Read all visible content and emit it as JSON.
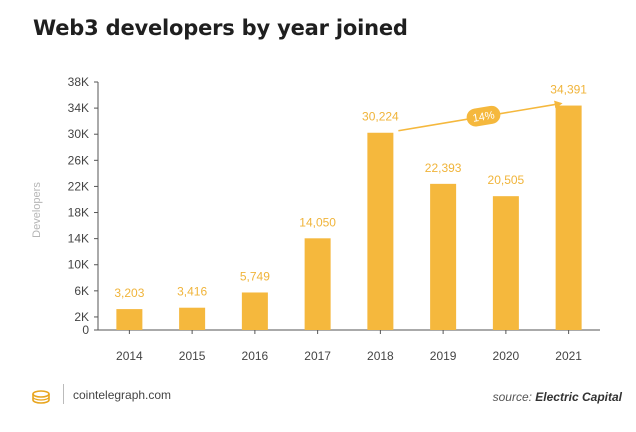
{
  "header": {
    "title": "Web3 developers by year joined"
  },
  "footer": {
    "site": "cointelegraph.com",
    "source_prefix": "source:",
    "source_name": "Electric Capital",
    "logo_icon": "cointelegraph-logo-icon"
  },
  "colors": {
    "bar": "#F5B83D",
    "label": "#F0B43A",
    "axis": "#555555",
    "grid": "#dddddd"
  },
  "chart_data": {
    "type": "bar",
    "title": "Web3 developers by year joined",
    "xlabel": "",
    "ylabel": "Developers",
    "categories": [
      "2014",
      "2015",
      "2016",
      "2017",
      "2018",
      "2019",
      "2020",
      "2021"
    ],
    "values": [
      3203,
      3416,
      5749,
      14050,
      30224,
      22393,
      20505,
      34391
    ],
    "value_labels": [
      "3,203",
      "3,416",
      "5,749",
      "14,050",
      "30,224",
      "22,393",
      "20,505",
      "34,391"
    ],
    "y_ticks": [
      0,
      2000,
      6000,
      10000,
      14000,
      18000,
      22000,
      26000,
      30000,
      34000,
      38000
    ],
    "y_tick_labels": [
      "0",
      "2K",
      "6K",
      "10K",
      "14K",
      "18K",
      "22K",
      "26K",
      "30K",
      "34K",
      "38K"
    ],
    "ylim": [
      0,
      38000
    ],
    "grid": false,
    "annotation": {
      "text": "14%",
      "from": "2018",
      "to": "2021"
    }
  }
}
